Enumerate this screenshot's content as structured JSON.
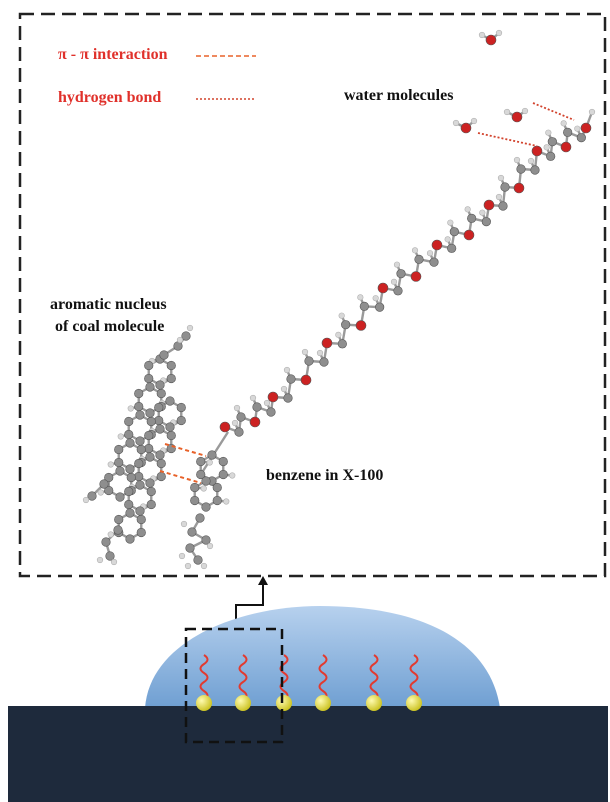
{
  "legend": {
    "pi_pi_label": "π - π interaction",
    "hbond_label": "hydrogen bond",
    "pi_pi_color": "#e8622a",
    "hbond_color": "#d2432d"
  },
  "labels": {
    "water": "water molecules",
    "aromatic_line1": "aromatic nucleus",
    "aromatic_line2": "of coal molecule",
    "benzene": "benzene in X-100"
  },
  "colors": {
    "label_red": "#e0312b",
    "oxygen": "#cc2222",
    "carbon": "#8e8e8e",
    "hydrogen": "#d8d8d8",
    "droplet": "#8db6df",
    "substrate": "#1e2a3c",
    "tail": "#e23a2f",
    "head": "#e8e42c"
  },
  "surfactants_on_surface": 6
}
